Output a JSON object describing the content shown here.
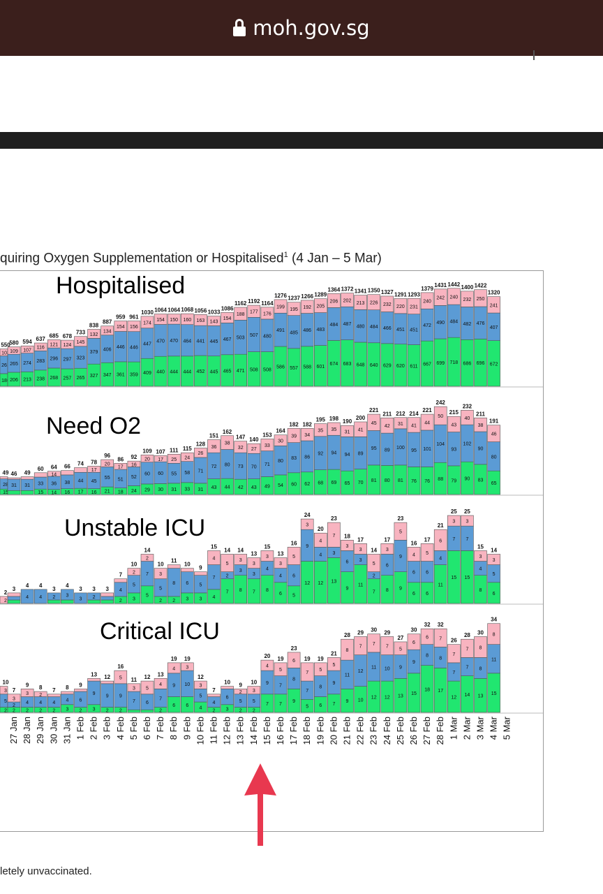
{
  "browser": {
    "url": "moh.gov.sg"
  },
  "page": {
    "subtitle": "quiring Oxygen Supplementation or Hospitalised",
    "subtitle_sup": "1",
    "subtitle_range": " (4 Jan – 5 Mar)",
    "footnote": "letely unvaccinated."
  },
  "colors": {
    "green": "#21e670",
    "blue": "#5b9bd5",
    "pink": "#f8b4c0",
    "topbar": "#3b1f1c",
    "arrow": "#e8384f"
  },
  "chart_data": {
    "type": "bar",
    "stacked": true,
    "dates": [
      "27 Jan",
      "28 Jan",
      "29 Jan",
      "30 Jan",
      "31 Jan",
      "1 Feb",
      "2 Feb",
      "3 Feb",
      "4 Feb",
      "5 Feb",
      "6 Feb",
      "7 Feb",
      "8 Feb",
      "9 Feb",
      "10 Feb",
      "11 Feb",
      "12 Feb",
      "13 Feb",
      "14 Feb",
      "15 Feb",
      "16 Feb",
      "17 Feb",
      "18 Feb",
      "19 Feb",
      "20 Feb",
      "21 Feb",
      "22 Feb",
      "23 Feb",
      "24 Feb",
      "25 Feb",
      "26 Feb",
      "27 Feb",
      "28 Feb",
      "1 Mar",
      "2 Mar",
      "3 Mar",
      "4 Mar",
      "5 Mar"
    ],
    "panels": [
      {
        "title": "Hospitalised",
        "ymax": 1450,
        "first_total": 550,
        "first_values": [
          186,
          261,
          103
        ],
        "totals": [
          580,
          594,
          637,
          685,
          678,
          733,
          838,
          887,
          959,
          961,
          1030,
          1064,
          1064,
          1068,
          1056,
          1033,
          1086,
          1162,
          1192,
          1164,
          1276,
          1237,
          1266,
          1289,
          1364,
          1372,
          1341,
          1350,
          1327,
          1291,
          1293,
          1379,
          1431,
          1442,
          1400,
          1422,
          1320
        ],
        "green": [
          206,
          213,
          238,
          268,
          257,
          265,
          327,
          347,
          361,
          359,
          409,
          440,
          444,
          444,
          452,
          445,
          465,
          471,
          508,
          508,
          586,
          557,
          588,
          601,
          674,
          683,
          648,
          640,
          629,
          620,
          611,
          667,
          699,
          718,
          686,
          696,
          672
        ],
        "blue": [
          265,
          274,
          283,
          296,
          297,
          323,
          379,
          406,
          446,
          446,
          447,
          470,
          470,
          464,
          441,
          445,
          467,
          503,
          507,
          480,
          491,
          485,
          486,
          483,
          484,
          487,
          480,
          484,
          466,
          451,
          451,
          472,
          490,
          484,
          482,
          476,
          407
        ],
        "pink": [
          109,
          107,
          116,
          121,
          124,
          145,
          132,
          134,
          154,
          156,
          174,
          154,
          150,
          160,
          163,
          143,
          154,
          188,
          177,
          176,
          199,
          195,
          192,
          205,
          206,
          202,
          213,
          226,
          232,
          220,
          231,
          240,
          242,
          240,
          232,
          250,
          241
        ]
      },
      {
        "title": "Need O2",
        "ymax": 250,
        "first_total": 49,
        "first_values": [
          15,
          28,
          6
        ],
        "totals": [
          46,
          49,
          60,
          64,
          66,
          74,
          78,
          96,
          86,
          92,
          109,
          107,
          111,
          115,
          128,
          151,
          162,
          147,
          140,
          153,
          164,
          182,
          182,
          195,
          198,
          190,
          200,
          221,
          211,
          212,
          214,
          221,
          242,
          215,
          232,
          211,
          191
        ],
        "green": [
          11,
          11,
          15,
          14,
          16,
          17,
          16,
          21,
          18,
          24,
          29,
          30,
          31,
          33,
          31,
          43,
          44,
          42,
          43,
          49,
          54,
          60,
          62,
          68,
          69,
          65,
          70,
          81,
          80,
          81,
          76,
          76,
          88,
          79,
          90,
          83,
          65
        ],
        "blue": [
          31,
          31,
          33,
          36,
          38,
          44,
          45,
          55,
          51,
          52,
          60,
          60,
          55,
          58,
          71,
          72,
          80,
          73,
          70,
          71,
          80,
          83,
          86,
          92,
          94,
          94,
          89,
          95,
          89,
          100,
          95,
          101,
          104,
          93,
          102,
          90,
          80
        ],
        "pink": [
          4,
          7,
          12,
          14,
          12,
          13,
          17,
          20,
          17,
          16,
          20,
          17,
          25,
          24,
          26,
          36,
          38,
          32,
          27,
          33,
          30,
          39,
          34,
          35,
          35,
          31,
          41,
          45,
          42,
          31,
          41,
          44,
          50,
          43,
          40,
          38,
          46
        ]
      },
      {
        "title": "Unstable ICU",
        "ymax": 26,
        "first_total": 2,
        "first_values": [
          0,
          0,
          2
        ],
        "totals": [
          3,
          4,
          4,
          3,
          4,
          3,
          3,
          3,
          7,
          10,
          14,
          10,
          11,
          10,
          9,
          15,
          14,
          14,
          13,
          15,
          13,
          16,
          24,
          20,
          23,
          18,
          17,
          14,
          17,
          23,
          16,
          17,
          21,
          25,
          25,
          15,
          14
        ],
        "green": [
          1,
          0,
          0,
          1,
          1,
          0,
          1,
          1,
          2,
          3,
          5,
          2,
          2,
          3,
          3,
          4,
          7,
          8,
          7,
          8,
          6,
          5,
          12,
          12,
          13,
          9,
          11,
          7,
          8,
          9,
          6,
          6,
          11,
          15,
          15,
          8,
          6
        ],
        "blue": [
          1,
          4,
          4,
          2,
          3,
          3,
          2,
          1,
          4,
          5,
          7,
          5,
          8,
          6,
          5,
          7,
          2,
          3,
          3,
          4,
          4,
          6,
          9,
          4,
          3,
          6,
          3,
          2,
          6,
          9,
          6,
          6,
          4,
          7,
          7,
          4,
          5
        ],
        "pink": [
          1,
          0,
          0,
          0,
          0,
          0,
          0,
          1,
          1,
          2,
          2,
          3,
          1,
          1,
          1,
          4,
          5,
          3,
          3,
          3,
          3,
          5,
          3,
          4,
          7,
          3,
          3,
          5,
          3,
          5,
          4,
          5,
          6,
          3,
          3,
          3,
          3
        ]
      },
      {
        "title": "Critical ICU",
        "ymax": 35,
        "first_total": 10,
        "first_values": [
          2,
          5,
          3
        ],
        "totals": [
          7,
          9,
          8,
          7,
          8,
          9,
          13,
          12,
          16,
          11,
          12,
          13,
          19,
          19,
          12,
          7,
          10,
          9,
          10,
          20,
          19,
          23,
          19,
          19,
          21,
          28,
          29,
          30,
          29,
          27,
          30,
          32,
          32,
          26,
          28,
          30,
          34
        ],
        "green": [
          2,
          2,
          2,
          2,
          3,
          2,
          3,
          2,
          2,
          1,
          1,
          2,
          6,
          6,
          4,
          2,
          3,
          2,
          2,
          7,
          7,
          9,
          5,
          6,
          7,
          9,
          10,
          12,
          12,
          13,
          15,
          18,
          17,
          12,
          14,
          13,
          15
        ],
        "blue": [
          2,
          4,
          4,
          4,
          4,
          6,
          9,
          9,
          9,
          7,
          6,
          7,
          9,
          10,
          5,
          4,
          6,
          5,
          5,
          9,
          7,
          8,
          7,
          8,
          9,
          11,
          12,
          11,
          10,
          9,
          9,
          8,
          8,
          7,
          7,
          8,
          11
        ],
        "pink": [
          3,
          3,
          2,
          1,
          1,
          1,
          1,
          1,
          5,
          3,
          5,
          4,
          4,
          3,
          3,
          1,
          1,
          2,
          3,
          4,
          5,
          6,
          7,
          5,
          5,
          8,
          7,
          7,
          7,
          5,
          6,
          6,
          7,
          7,
          7,
          8,
          8
        ]
      }
    ]
  }
}
